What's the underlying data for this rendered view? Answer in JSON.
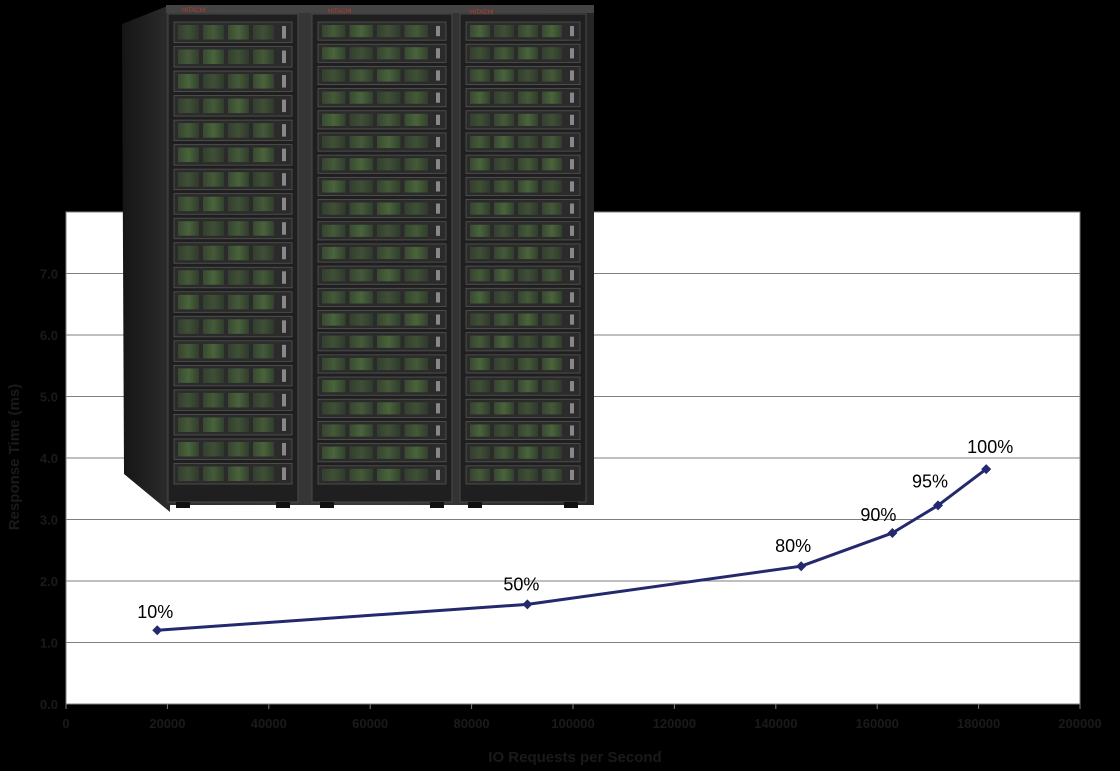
{
  "colors": {
    "background": "#000000",
    "plot_area": "#ffffff",
    "gridline": "#7f7f7f",
    "series_line": "#24296e",
    "axis_text": "#1a1a1a",
    "rack_body": "#2a2a2a",
    "drive_green": "#4a6a3a"
  },
  "image": {
    "subject": "storage-rack-cabinet-photo",
    "brand_badge": "HITACHI"
  },
  "chart_data": {
    "type": "line",
    "title": "",
    "xlabel": "IO Requests per Second",
    "ylabel": "Response Time (ms)",
    "xlim": [
      0,
      200000
    ],
    "ylim": [
      0,
      8
    ],
    "x_ticks": [
      0,
      20000,
      40000,
      60000,
      80000,
      100000,
      120000,
      140000,
      160000,
      180000,
      200000
    ],
    "x_tick_labels": [
      "0",
      "20000",
      "40000",
      "60000",
      "80000",
      "100000",
      "120000",
      "140000",
      "160000",
      "180000",
      "200000"
    ],
    "y_ticks": [
      0,
      1,
      2,
      3,
      4,
      5,
      6,
      7
    ],
    "y_tick_labels": [
      "0.0",
      "1.0",
      "2.0",
      "3.0",
      "4.0",
      "5.0",
      "6.0",
      "7.0"
    ],
    "grid": "horizontal",
    "legend": "none",
    "marker": "diamond",
    "series": [
      {
        "x": [
          18000,
          91000,
          145000,
          163000,
          172000,
          181500
        ],
        "y": [
          1.2,
          1.62,
          2.24,
          2.78,
          3.23,
          3.82
        ],
        "point_labels": [
          "10%",
          "50%",
          "80%",
          "90%",
          "95%",
          "100%"
        ]
      }
    ]
  }
}
